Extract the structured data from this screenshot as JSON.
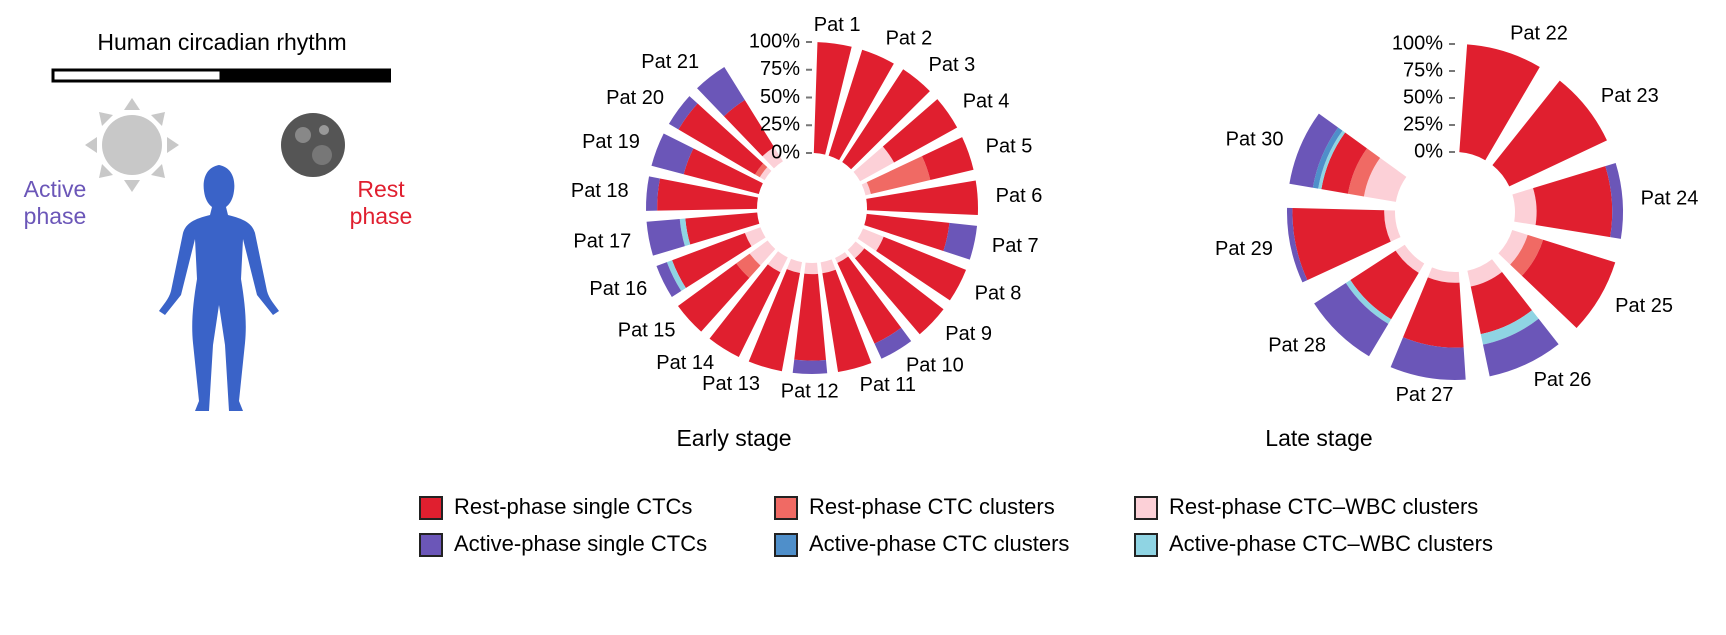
{
  "illustration": {
    "title": "Human circadian rhythm",
    "active": "Active phase",
    "rest": "Rest phase"
  },
  "chart_data": [
    {
      "type": "radialbar",
      "title": "Early stage",
      "categories": [
        "Pat 1",
        "Pat 2",
        "Pat 3",
        "Pat 4",
        "Pat 5",
        "Pat 6",
        "Pat 7",
        "Pat 8",
        "Pat 9",
        "Pat 10",
        "Pat 11",
        "Pat 12",
        "Pat 13",
        "Pat 14",
        "Pat 15",
        "Pat 16",
        "Pat 17",
        "Pat 18",
        "Pat 19",
        "Pat 20",
        "Pat 21"
      ],
      "ylim": [
        0,
        100
      ],
      "yticks": [
        {
          "value": 0,
          "label": "0%"
        },
        {
          "value": 25,
          "label": "25%"
        },
        {
          "value": 50,
          "label": "50%"
        },
        {
          "value": 75,
          "label": "75%"
        },
        {
          "value": 100,
          "label": "100%"
        }
      ],
      "series": [
        {
          "name": "Rest-phase single CTCs",
          "color": "#e01f2f",
          "values": [
            100,
            100,
            100,
            65,
            40,
            100,
            75,
            80,
            90,
            80,
            90,
            78,
            90,
            85,
            65,
            70,
            65,
            90,
            70,
            80,
            50
          ]
        },
        {
          "name": "Rest-phase CTC clusters",
          "color": "#f06a64",
          "values": [
            0,
            0,
            0,
            0,
            55,
            0,
            0,
            0,
            0,
            0,
            0,
            0,
            0,
            0,
            15,
            0,
            0,
            0,
            0,
            5,
            0
          ]
        },
        {
          "name": "Rest-phase CTC–WBC clusters",
          "color": "#fcd0d7",
          "values": [
            0,
            0,
            0,
            35,
            5,
            0,
            0,
            20,
            10,
            5,
            10,
            10,
            10,
            15,
            20,
            15,
            0,
            0,
            0,
            5,
            15
          ]
        },
        {
          "name": "Active-phase single CTCs",
          "color": "#6b56b8",
          "values": [
            0,
            0,
            0,
            0,
            0,
            0,
            25,
            0,
            0,
            15,
            0,
            12,
            0,
            0,
            0,
            10,
            30,
            10,
            30,
            10,
            35
          ]
        },
        {
          "name": "Active-phase CTC clusters",
          "color": "#4f8fca",
          "values": [
            0,
            0,
            0,
            0,
            0,
            0,
            0,
            0,
            0,
            0,
            0,
            0,
            0,
            0,
            0,
            0,
            0,
            0,
            0,
            0,
            0
          ]
        },
        {
          "name": "Active-phase CTC–WBC clusters",
          "color": "#8fd4e3",
          "values": [
            0,
            0,
            0,
            0,
            0,
            0,
            0,
            0,
            0,
            0,
            0,
            0,
            0,
            0,
            0,
            5,
            5,
            0,
            0,
            0,
            0
          ]
        }
      ]
    },
    {
      "type": "radialbar",
      "title": "Late stage",
      "categories": [
        "Pat 22",
        "Pat 23",
        "Pat 24",
        "Pat 25",
        "Pat 26",
        "Pat 27",
        "Pat 28",
        "Pat 29",
        "Pat 30"
      ],
      "ylim": [
        0,
        100
      ],
      "yticks": [
        {
          "value": 0,
          "label": "0%"
        },
        {
          "value": 25,
          "label": "25%"
        },
        {
          "value": 50,
          "label": "50%"
        },
        {
          "value": 75,
          "label": "75%"
        },
        {
          "value": 100,
          "label": "100%"
        }
      ],
      "series": [
        {
          "values": [
            100,
            100,
            70,
            70,
            45,
            60,
            50,
            85,
            25
          ]
        },
        {
          "values": [
            0,
            0,
            0,
            15,
            0,
            0,
            0,
            0,
            15
          ]
        },
        {
          "values": [
            0,
            0,
            20,
            15,
            15,
            10,
            10,
            10,
            30
          ]
        },
        {
          "values": [
            0,
            0,
            10,
            0,
            30,
            30,
            35,
            5,
            22
          ]
        },
        {
          "values": [
            0,
            0,
            0,
            0,
            0,
            0,
            0,
            0,
            5
          ]
        },
        {
          "values": [
            0,
            0,
            0,
            0,
            10,
            0,
            5,
            0,
            3
          ]
        }
      ]
    }
  ]
}
